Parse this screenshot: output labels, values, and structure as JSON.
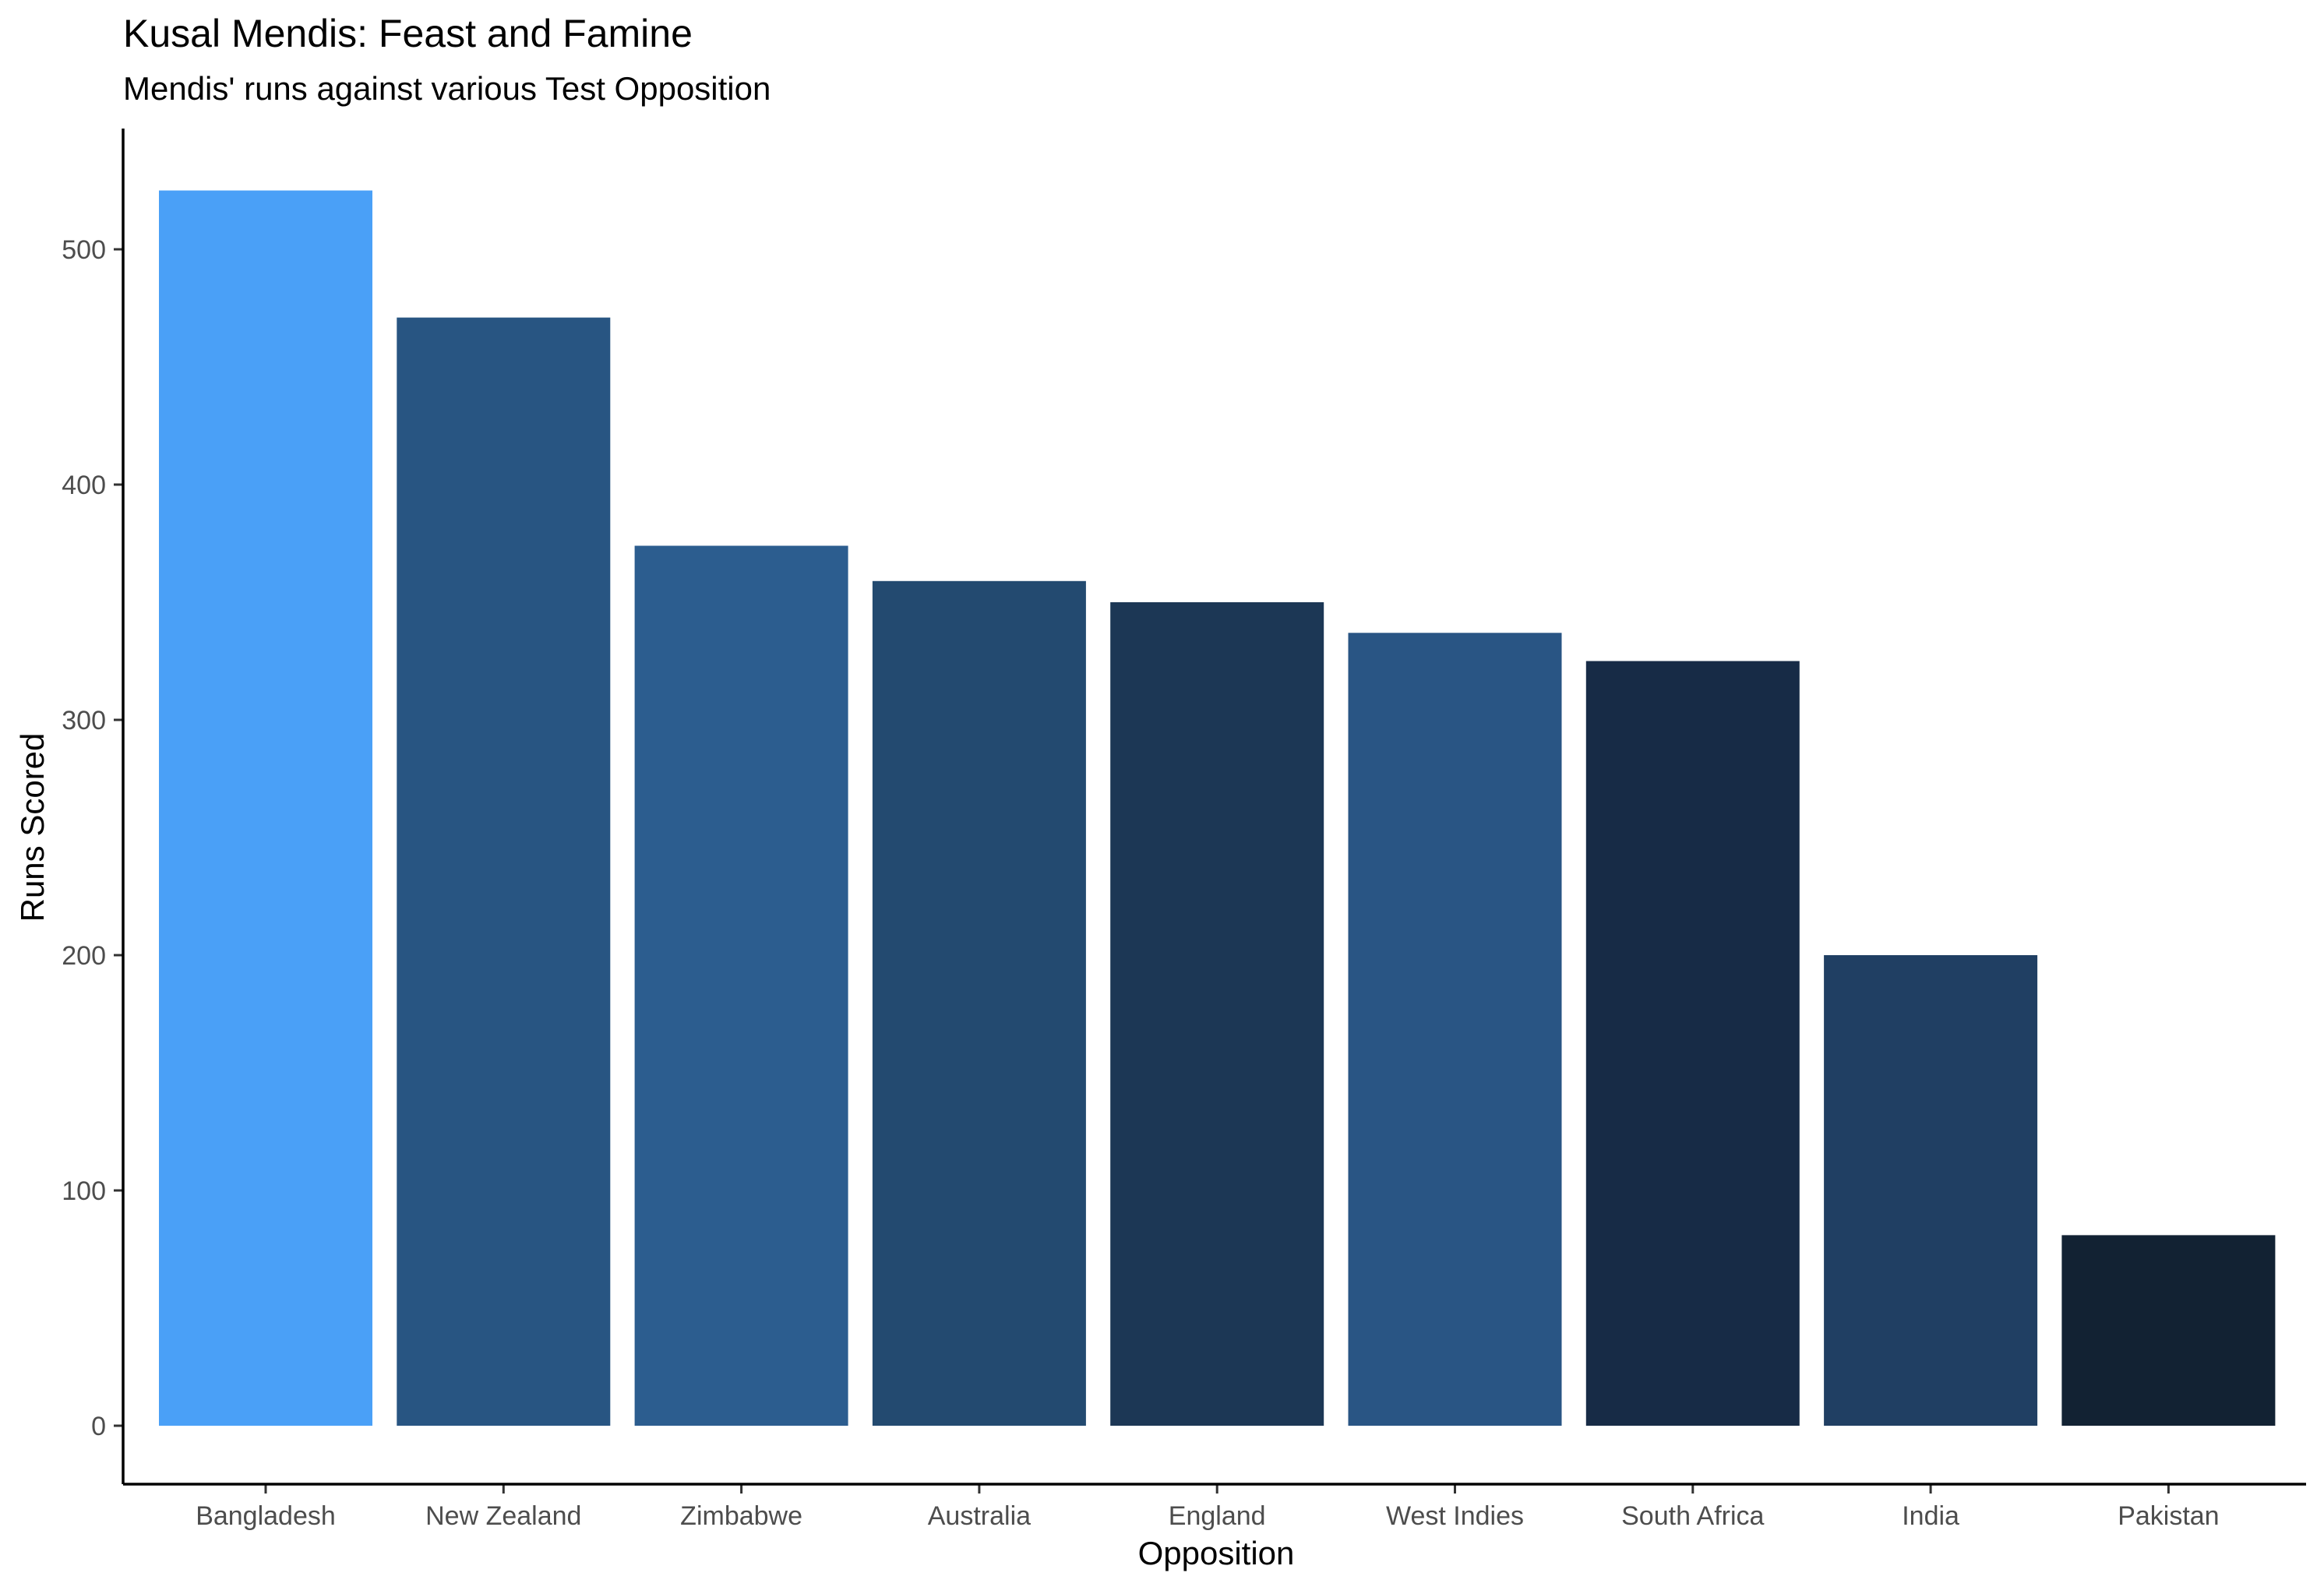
{
  "chart_data": {
    "type": "bar",
    "title": "Kusal Mendis: Feast and Famine",
    "subtitle": "Mendis' runs against various Test Opposition",
    "xlabel": "Opposition",
    "ylabel": "Runs Scored",
    "categories": [
      "Bangladesh",
      "New Zealand",
      "Zimbabwe",
      "Australia",
      "England",
      "West Indies",
      "South Africa",
      "India",
      "Pakistan"
    ],
    "values": [
      525,
      471,
      374,
      359,
      350,
      337,
      325,
      200,
      81
    ],
    "colors": [
      "#4aa0f7",
      "#285582",
      "#2c5d8f",
      "#234a70",
      "#1c3755",
      "#295584",
      "#172b46",
      "#203f63",
      "#122233"
    ],
    "ylim": [
      0,
      550
    ],
    "yticks": [
      0,
      100,
      200,
      300,
      400,
      500
    ],
    "grid": false,
    "legend": "none"
  }
}
